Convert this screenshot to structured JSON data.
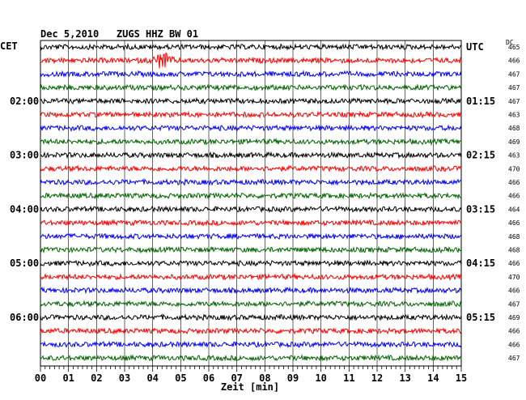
{
  "header": {
    "title": "Dec 5,2010   ZUGS HHZ BW 01",
    "left_tz": "CET",
    "right_tz": "UTC",
    "dc_label": "DC"
  },
  "chart_data": {
    "type": "line",
    "title": "Dec 5,2010   ZUGS HHZ BW 01",
    "xlabel": "Zeit [min]",
    "ylabel": "",
    "xlim": [
      0,
      15
    ],
    "x_ticks": [
      "00",
      "01",
      "02",
      "03",
      "04",
      "05",
      "06",
      "07",
      "08",
      "09",
      "10",
      "11",
      "12",
      "13",
      "14",
      "15"
    ],
    "grid": true,
    "trace_count": 24,
    "trace_colors": [
      "#000000",
      "#ff0000",
      "#0000ff",
      "#006400"
    ],
    "left_hour_labels": [
      {
        "trace": 4,
        "label": "02:00"
      },
      {
        "trace": 8,
        "label": "03:00"
      },
      {
        "trace": 12,
        "label": "04:00"
      },
      {
        "trace": 16,
        "label": "05:00"
      },
      {
        "trace": 20,
        "label": "06:00"
      }
    ],
    "right_hour_labels": [
      {
        "trace": 0,
        "label": "UTC"
      },
      {
        "trace": 4,
        "label": "01:15"
      },
      {
        "trace": 8,
        "label": "02:15"
      },
      {
        "trace": 12,
        "label": "03:15"
      },
      {
        "trace": 16,
        "label": "04:15"
      },
      {
        "trace": 20,
        "label": "05:15"
      }
    ],
    "dc_offsets": [
      465,
      466,
      467,
      467,
      467,
      463,
      468,
      469,
      463,
      470,
      466,
      466,
      464,
      466,
      468,
      468,
      466,
      470,
      466,
      467,
      469,
      466,
      466,
      467
    ],
    "events": [
      {
        "trace": 1,
        "center_min": 4.35,
        "width_min": 0.55,
        "amplitude": "strong"
      }
    ]
  }
}
